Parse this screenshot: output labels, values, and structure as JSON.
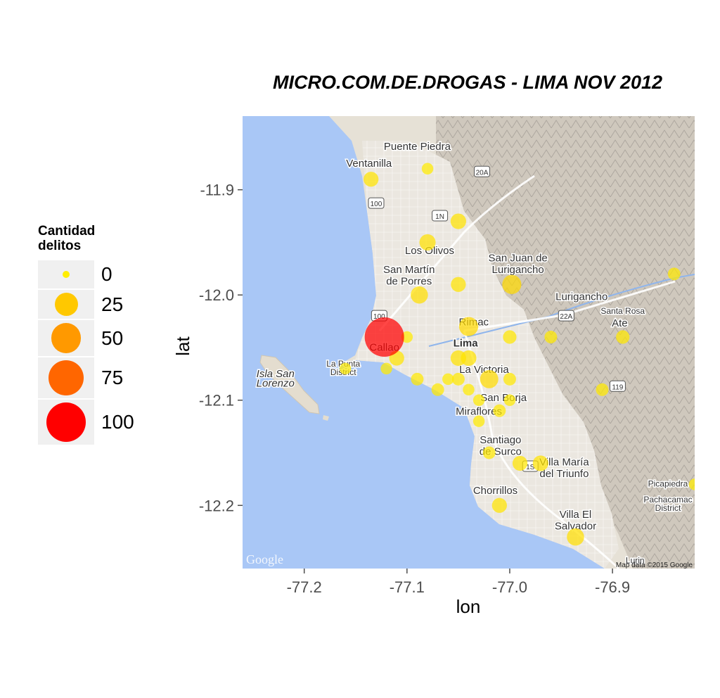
{
  "chart_data": {
    "type": "scatter",
    "title": "MICRO.COM.DE.DROGAS - LIMA NOV 2012",
    "xlabel": "lon",
    "ylabel": "lat",
    "xlim": [
      -77.26,
      -76.82
    ],
    "ylim": [
      -12.26,
      -11.83
    ],
    "x_ticks": [
      -77.2,
      -77.1,
      -77.0,
      -76.9
    ],
    "x_tick_labels": [
      "-77.2",
      "-77.1",
      "-77.0",
      "-76.9"
    ],
    "y_ticks": [
      -11.9,
      -12.0,
      -12.1,
      -12.2
    ],
    "y_tick_labels": [
      "-11.9",
      "-12.0",
      "-12.1",
      "-12.2"
    ],
    "grid": false,
    "basemap": "terrain",
    "size_scale": {
      "min_value": 0,
      "max_value": 100
    },
    "legend": {
      "title": "Cantidad\ndelitos",
      "position": "left",
      "entries": [
        {
          "label": "0",
          "value": 0,
          "color": "#FFEE00"
        },
        {
          "label": "25",
          "value": 25,
          "color": "#FFC800"
        },
        {
          "label": "50",
          "value": 50,
          "color": "#FF9900"
        },
        {
          "label": "75",
          "value": 75,
          "color": "#FF6600"
        },
        {
          "label": "100",
          "value": 100,
          "color": "#FF0000"
        }
      ]
    },
    "points": [
      {
        "lon": -77.122,
        "lat": -12.04,
        "value": 100
      },
      {
        "lon": -77.04,
        "lat": -12.03,
        "value": 14
      },
      {
        "lon": -76.998,
        "lat": -11.99,
        "value": 14
      },
      {
        "lon": -77.02,
        "lat": -12.08,
        "value": 12
      },
      {
        "lon": -77.088,
        "lat": -12.0,
        "value": 10
      },
      {
        "lon": -76.936,
        "lat": -12.23,
        "value": 10
      },
      {
        "lon": -77.08,
        "lat": -11.95,
        "value": 8
      },
      {
        "lon": -77.05,
        "lat": -11.93,
        "value": 7
      },
      {
        "lon": -77.05,
        "lat": -11.99,
        "value": 6
      },
      {
        "lon": -77.05,
        "lat": -12.06,
        "value": 7
      },
      {
        "lon": -77.04,
        "lat": -12.06,
        "value": 7
      },
      {
        "lon": -77.135,
        "lat": -11.89,
        "value": 6
      },
      {
        "lon": -77.11,
        "lat": -12.06,
        "value": 6
      },
      {
        "lon": -76.97,
        "lat": -12.16,
        "value": 7
      },
      {
        "lon": -76.99,
        "lat": -12.16,
        "value": 6
      },
      {
        "lon": -77.01,
        "lat": -12.2,
        "value": 6
      },
      {
        "lon": -77.0,
        "lat": -12.04,
        "value": 4
      },
      {
        "lon": -76.96,
        "lat": -12.04,
        "value": 3
      },
      {
        "lon": -76.89,
        "lat": -12.04,
        "value": 4
      },
      {
        "lon": -76.84,
        "lat": -11.98,
        "value": 3
      },
      {
        "lon": -77.08,
        "lat": -11.88,
        "value": 2
      },
      {
        "lon": -77.1,
        "lat": -12.04,
        "value": 2
      },
      {
        "lon": -77.16,
        "lat": -12.07,
        "value": 2
      },
      {
        "lon": -77.12,
        "lat": -12.07,
        "value": 2
      },
      {
        "lon": -77.09,
        "lat": -12.08,
        "value": 3
      },
      {
        "lon": -77.07,
        "lat": -12.09,
        "value": 3
      },
      {
        "lon": -77.06,
        "lat": -12.08,
        "value": 2
      },
      {
        "lon": -77.05,
        "lat": -12.08,
        "value": 3
      },
      {
        "lon": -77.04,
        "lat": -12.09,
        "value": 2
      },
      {
        "lon": -77.03,
        "lat": -12.1,
        "value": 2
      },
      {
        "lon": -77.0,
        "lat": -12.08,
        "value": 3
      },
      {
        "lon": -77.0,
        "lat": -12.1,
        "value": 2
      },
      {
        "lon": -77.01,
        "lat": -12.11,
        "value": 3
      },
      {
        "lon": -77.03,
        "lat": -12.12,
        "value": 2
      },
      {
        "lon": -77.02,
        "lat": -12.15,
        "value": 3
      },
      {
        "lon": -76.91,
        "lat": -12.09,
        "value": 3
      },
      {
        "lon": -76.82,
        "lat": -12.18,
        "value": 2
      }
    ]
  },
  "map_labels": [
    {
      "text": "Puente Piedra",
      "lon": -77.09,
      "lat": -11.862,
      "size": "normal"
    },
    {
      "text": "Ventanilla",
      "lon": -77.137,
      "lat": -11.878,
      "size": "normal"
    },
    {
      "text": "Los Olivos",
      "lon": -77.078,
      "lat": -11.961,
      "size": "normal"
    },
    {
      "text": "San Martín",
      "lon": -77.098,
      "lat": -11.979,
      "size": "normal"
    },
    {
      "text": "de Porres",
      "lon": -77.098,
      "lat": -11.99,
      "size": "normal"
    },
    {
      "text": "San Juan de",
      "lon": -76.992,
      "lat": -11.968,
      "size": "normal"
    },
    {
      "text": "Lurigancho",
      "lon": -76.992,
      "lat": -11.979,
      "size": "normal"
    },
    {
      "text": "Lurigancho",
      "lon": -76.93,
      "lat": -12.005,
      "size": "normal"
    },
    {
      "text": "Santa Rosa",
      "lon": -76.89,
      "lat": -12.018,
      "size": "small"
    },
    {
      "text": "Rimac",
      "lon": -77.035,
      "lat": -12.029,
      "size": "normal"
    },
    {
      "text": "Ate",
      "lon": -76.893,
      "lat": -12.03,
      "size": "normal"
    },
    {
      "text": "Lima",
      "lon": -77.043,
      "lat": -12.049,
      "size": "large"
    },
    {
      "text": "Callao",
      "lon": -77.122,
      "lat": -12.053,
      "size": "normal"
    },
    {
      "text": "La Punta",
      "lon": -77.162,
      "lat": -12.068,
      "size": "small"
    },
    {
      "text": "District",
      "lon": -77.162,
      "lat": -12.076,
      "size": "small"
    },
    {
      "text": "Isla San",
      "lon": -77.228,
      "lat": -12.078,
      "size": "italic"
    },
    {
      "text": "Lorenzo",
      "lon": -77.228,
      "lat": -12.087,
      "size": "italic"
    },
    {
      "text": "La Victoria",
      "lon": -77.025,
      "lat": -12.074,
      "size": "normal"
    },
    {
      "text": "San Borja",
      "lon": -77.006,
      "lat": -12.101,
      "size": "normal"
    },
    {
      "text": "Miraflores",
      "lon": -77.03,
      "lat": -12.114,
      "size": "normal"
    },
    {
      "text": "Santiago",
      "lon": -77.009,
      "lat": -12.141,
      "size": "normal"
    },
    {
      "text": "de Surco",
      "lon": -77.009,
      "lat": -12.152,
      "size": "normal"
    },
    {
      "text": "Villa María",
      "lon": -76.947,
      "lat": -12.162,
      "size": "normal"
    },
    {
      "text": "del Triunfo",
      "lon": -76.947,
      "lat": -12.173,
      "size": "normal"
    },
    {
      "text": "Chorrillos",
      "lon": -77.014,
      "lat": -12.189,
      "size": "normal"
    },
    {
      "text": "Villa El",
      "lon": -76.936,
      "lat": -12.212,
      "size": "normal"
    },
    {
      "text": "Salvador",
      "lon": -76.936,
      "lat": -12.223,
      "size": "normal"
    },
    {
      "text": "Picapiedra",
      "lon": -76.846,
      "lat": -12.182,
      "size": "small"
    },
    {
      "text": "Pachacamac",
      "lon": -76.846,
      "lat": -12.197,
      "size": "small"
    },
    {
      "text": "District",
      "lon": -76.846,
      "lat": -12.205,
      "size": "small"
    },
    {
      "text": "Lurin",
      "lon": -76.878,
      "lat": -12.255,
      "size": "small"
    }
  ],
  "road_shields": [
    {
      "text": "20A",
      "lon": -77.027,
      "lat": -11.883
    },
    {
      "text": "1N",
      "lon": -77.068,
      "lat": -11.925
    },
    {
      "text": "100",
      "lon": -77.13,
      "lat": -11.913
    },
    {
      "text": "22A",
      "lon": -76.945,
      "lat": -12.02
    },
    {
      "text": "100",
      "lon": -77.127,
      "lat": -12.02
    },
    {
      "text": "119",
      "lon": -76.895,
      "lat": -12.087
    },
    {
      "text": "1S",
      "lon": -76.98,
      "lat": -12.163
    }
  ],
  "attribution": {
    "logo": "Google",
    "map_data": "Map data ©2015 Google"
  },
  "colors": {
    "sea": "#a9c7f6",
    "land": "#ebe6dc",
    "urban": "#e8e4dd",
    "hills": "#9a9490"
  }
}
